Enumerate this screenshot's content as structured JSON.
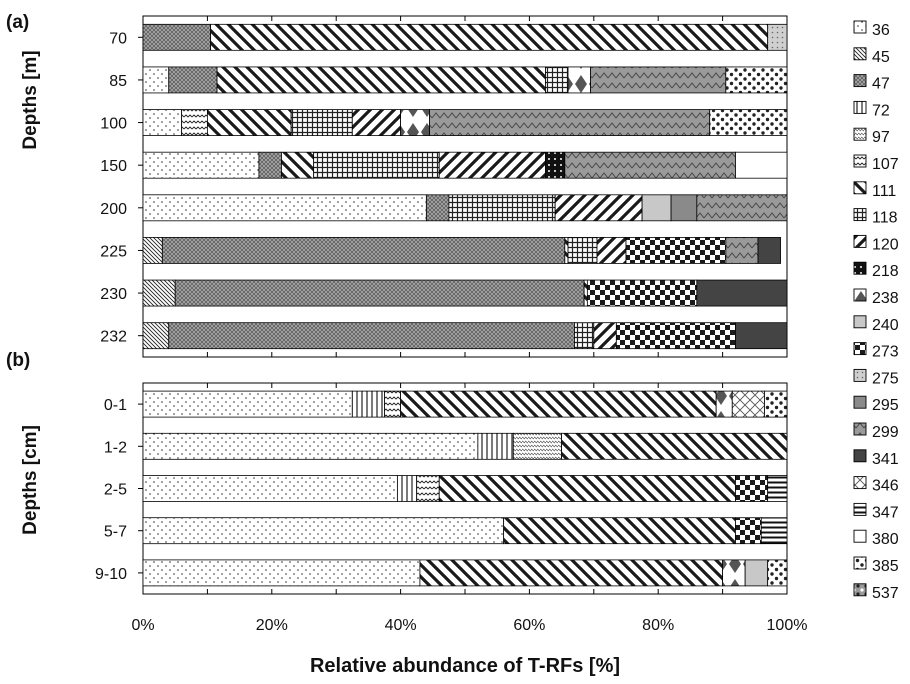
{
  "chart_data": {
    "type": "bar",
    "orientation": "horizontal",
    "stacked": true,
    "xlabel": "Relative abundance of T-RFs [%]",
    "xlim": [
      0,
      100
    ],
    "xticks": [
      "0%",
      "20%",
      "40%",
      "60%",
      "80%",
      "100%"
    ],
    "legend_position": "right",
    "legend": [
      {
        "label": "36",
        "color": "#ffffff",
        "pattern": "dots"
      },
      {
        "label": "45",
        "color": "#ffffff",
        "pattern": "diag-fine"
      },
      {
        "label": "47",
        "color": "#b0b0b0",
        "pattern": "cross-fine"
      },
      {
        "label": "72",
        "color": "#ffffff",
        "pattern": "vlines"
      },
      {
        "label": "97",
        "color": "#ffffff",
        "pattern": "dense-dash"
      },
      {
        "label": "107",
        "color": "#ffffff",
        "pattern": "zigzag"
      },
      {
        "label": "111",
        "color": "#ffffff",
        "pattern": "diag-bold"
      },
      {
        "label": "118",
        "color": "#ffffff",
        "pattern": "grid"
      },
      {
        "label": "120",
        "color": "#ffffff",
        "pattern": "diag-up-bold"
      },
      {
        "label": "218",
        "color": "#111111",
        "pattern": "dark-dot"
      },
      {
        "label": "238",
        "color": "#ffffff",
        "pattern": "diamond"
      },
      {
        "label": "240",
        "color": "#c8c8c8",
        "pattern": "solid"
      },
      {
        "label": "273",
        "color": "#ffffff",
        "pattern": "checker"
      },
      {
        "label": "275",
        "color": "#d0d0d0",
        "pattern": "light-dots"
      },
      {
        "label": "295",
        "color": "#8a8a8a",
        "pattern": "solid"
      },
      {
        "label": "299",
        "color": "#9a9a9a",
        "pattern": "wave"
      },
      {
        "label": "341",
        "color": "#444444",
        "pattern": "solid"
      },
      {
        "label": "346",
        "color": "#ffffff",
        "pattern": "xcross"
      },
      {
        "label": "347",
        "color": "#ffffff",
        "pattern": "hlines"
      },
      {
        "label": "380",
        "color": "#ffffff",
        "pattern": "blank"
      },
      {
        "label": "385",
        "color": "#ffffff",
        "pattern": "spots"
      },
      {
        "label": "537",
        "color": "#9a9a9a",
        "pattern": "spots-dark"
      }
    ],
    "panels": [
      {
        "panel_label": "(a)",
        "ylabel": "Depths [m]",
        "categories": [
          "70",
          "85",
          "100",
          "150",
          "200",
          "225",
          "230",
          "232"
        ],
        "series": [
          {
            "name": "36",
            "values": [
              0,
              4,
              6,
              18,
              44,
              0,
              0,
              0
            ]
          },
          {
            "name": "45",
            "values": [
              0,
              0,
              0,
              0,
              0,
              3,
              5,
              4
            ]
          },
          {
            "name": "47",
            "values": [
              10.5,
              7.5,
              0,
              3.5,
              3.5,
              62.5,
              63.5,
              63
            ]
          },
          {
            "name": "107",
            "values": [
              0,
              0,
              4,
              0,
              0,
              0,
              0,
              0
            ]
          },
          {
            "name": "111",
            "values": [
              86.5,
              51,
              13,
              5,
              0,
              0.5,
              0.5,
              0
            ]
          },
          {
            "name": "118",
            "values": [
              0,
              3.5,
              9.5,
              19.5,
              16.5,
              4.5,
              0,
              3
            ]
          },
          {
            "name": "120",
            "values": [
              0,
              0,
              7.5,
              16.5,
              13.5,
              4.5,
              0,
              3.5
            ]
          },
          {
            "name": "218",
            "values": [
              0,
              0,
              0,
              3,
              0,
              0,
              0,
              0
            ]
          },
          {
            "name": "238",
            "values": [
              0,
              3.5,
              4.5,
              0,
              0,
              0,
              0,
              0
            ]
          },
          {
            "name": "240",
            "values": [
              0,
              0,
              0,
              0,
              4.5,
              0,
              0,
              0
            ]
          },
          {
            "name": "273",
            "values": [
              0,
              0,
              0,
              0,
              0,
              15.5,
              17,
              18.5
            ]
          },
          {
            "name": "275",
            "values": [
              3,
              0,
              0,
              0,
              0,
              0,
              0,
              0
            ]
          },
          {
            "name": "295",
            "values": [
              0,
              0,
              0,
              0,
              4,
              0,
              0,
              0
            ]
          },
          {
            "name": "299",
            "values": [
              0,
              21,
              43.5,
              26.5,
              14,
              5,
              0,
              0
            ]
          },
          {
            "name": "341",
            "values": [
              0,
              0,
              0,
              0,
              0,
              3.5,
              14,
              8
            ]
          },
          {
            "name": "380",
            "values": [
              0,
              0,
              0,
              8,
              0,
              0,
              0,
              0
            ]
          },
          {
            "name": "385",
            "values": [
              0,
              9.5,
              12,
              0,
              0,
              0,
              0,
              0
            ]
          }
        ]
      },
      {
        "panel_label": "(b)",
        "ylabel": "Depths [cm]",
        "categories": [
          "0-1",
          "1-2",
          "2-5",
          "5-7",
          "9-10"
        ],
        "series": [
          {
            "name": "36",
            "values": [
              32.5,
              52,
              39.5,
              56,
              43
            ]
          },
          {
            "name": "72",
            "values": [
              5,
              5.5,
              3,
              0,
              0
            ]
          },
          {
            "name": "97",
            "values": [
              0,
              7.5,
              0,
              0,
              0
            ]
          },
          {
            "name": "107",
            "values": [
              2.5,
              0,
              3.5,
              0,
              0
            ]
          },
          {
            "name": "111",
            "values": [
              49,
              35,
              46,
              36,
              47
            ]
          },
          {
            "name": "238",
            "values": [
              2.5,
              0,
              0,
              0,
              3.5
            ]
          },
          {
            "name": "240",
            "values": [
              0,
              0,
              0,
              0,
              3.5
            ]
          },
          {
            "name": "273",
            "values": [
              0,
              0,
              5,
              4,
              0
            ]
          },
          {
            "name": "346",
            "values": [
              5,
              0,
              0,
              0,
              0
            ]
          },
          {
            "name": "347",
            "values": [
              0,
              0,
              3,
              4,
              0
            ]
          },
          {
            "name": "385",
            "values": [
              3.5,
              0,
              0,
              0,
              3
            ]
          }
        ]
      }
    ]
  }
}
